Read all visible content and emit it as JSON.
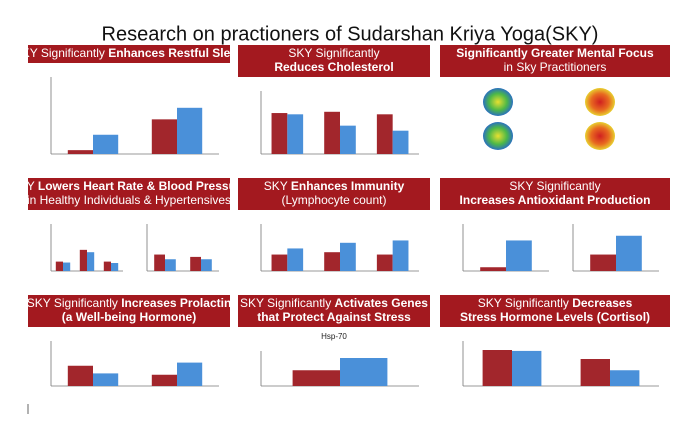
{
  "title": "Research on practioners of Sudarshan Kriya Yoga(SKY)",
  "panels": [
    {
      "header": [
        [
          {
            "text": "SKY Significantly "
          },
          {
            "text": "Enhances Restful Sleep",
            "bold": true
          }
        ]
      ],
      "charts": [
        [
          [
            5,
            25
          ],
          [
            45,
            60
          ]
        ]
      ]
    },
    {
      "header": [
        [
          {
            "text": "SKY Significantly"
          }
        ],
        [
          {
            "text": "Reduces Cholesterol",
            "bold": true
          }
        ]
      ],
      "charts": [
        [
          [
            65,
            63
          ],
          [
            67,
            45
          ],
          [
            63,
            37
          ]
        ]
      ]
    },
    {
      "header": [
        [
          {
            "text": "Significantly Greater Mental Focus",
            "bold": true
          }
        ],
        [
          {
            "text": "in Sky Practitioners"
          }
        ]
      ]
    },
    {
      "header": [
        [
          {
            "text": "SKY "
          },
          {
            "text": "Lowers Heart Rate & Blood Pressure",
            "bold": true
          }
        ],
        [
          {
            "text": "in Healthy Individuals & Hypertensives"
          }
        ]
      ],
      "charts": [
        [
          [
            20,
            18
          ],
          [
            45,
            40
          ],
          [
            20,
            17
          ]
        ],
        [
          [
            35,
            25
          ],
          [
            30,
            25
          ]
        ]
      ]
    },
    {
      "header": [
        [
          {
            "text": "SKY "
          },
          {
            "text": "Enhances Immunity",
            "bold": true
          }
        ],
        [
          {
            "text": "(Lymphocyte count)"
          }
        ]
      ],
      "charts": [
        [
          [
            35,
            48
          ],
          [
            40,
            60
          ],
          [
            35,
            65
          ]
        ]
      ]
    },
    {
      "header": [
        [
          {
            "text": "SKY Significantly"
          }
        ],
        [
          {
            "text": "Increases Antioxidant Production",
            "bold": true
          }
        ]
      ],
      "charts": [
        [
          [
            8,
            65
          ]
        ],
        [
          [
            35,
            75
          ]
        ]
      ]
    },
    {
      "header": [
        [
          {
            "text": "SKY Significantly "
          },
          {
            "text": "Increases Prolactin",
            "bold": true
          }
        ],
        [
          {
            "text": "(a Well-being Hormone)",
            "bold": true
          }
        ]
      ],
      "charts": [
        [
          [
            45,
            28
          ],
          [
            25,
            52
          ]
        ]
      ]
    },
    {
      "header": [
        [
          {
            "text": "SKY Significantly "
          },
          {
            "text": "Activates Genes",
            "bold": true
          }
        ],
        [
          {
            "text": "that Protect Against Stress",
            "bold": true
          }
        ]
      ],
      "chart_title": "Hsp-70",
      "charts": [
        [
          [
            45,
            80
          ]
        ]
      ]
    },
    {
      "header": [
        [
          {
            "text": "SKY Significantly "
          },
          {
            "text": "Decreases",
            "bold": true
          }
        ],
        [
          {
            "text": "Stress Hormone Levels (Cortisol)",
            "bold": true
          }
        ]
      ],
      "charts": [
        [
          [
            80,
            78
          ],
          [
            60,
            35
          ]
        ]
      ]
    }
  ]
}
